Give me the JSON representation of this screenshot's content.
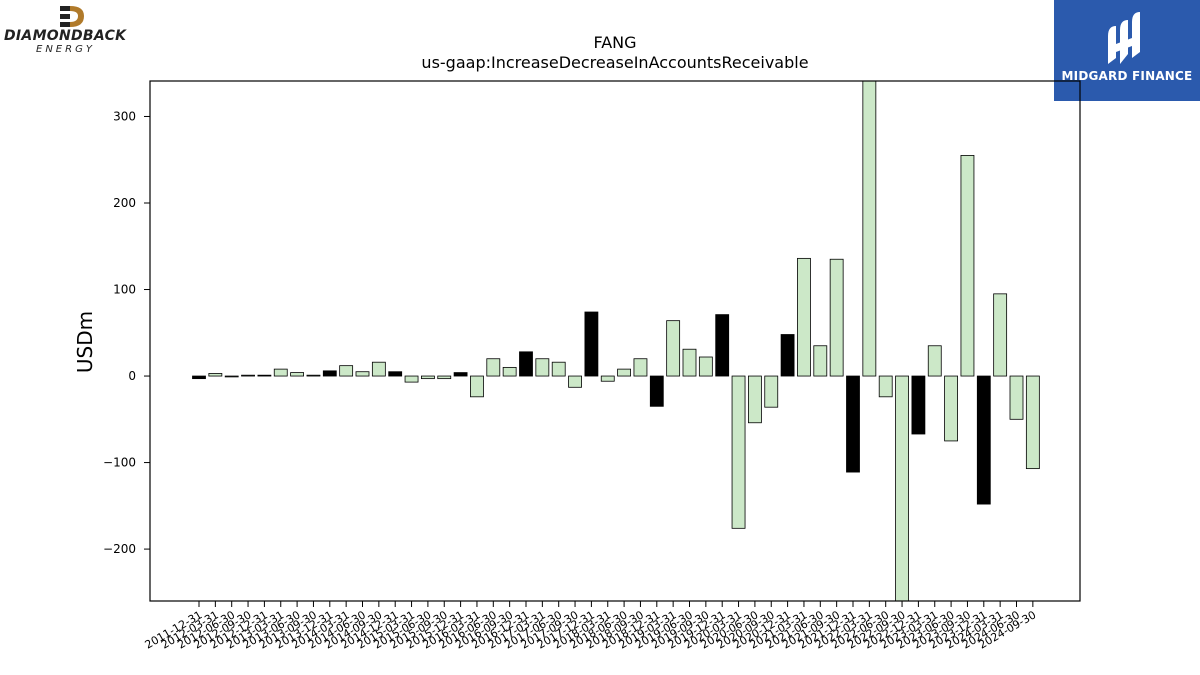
{
  "logos": {
    "left": {
      "name": "DIAMONDBACK",
      "sub": "ENERGY"
    },
    "right": {
      "name": "MIDGARD FINANCE"
    }
  },
  "chart_data": {
    "type": "bar",
    "title": "FANG",
    "subtitle": "us-gaap:IncreaseDecreaseInAccountsReceivable",
    "xlabel": "",
    "ylabel": "USDm",
    "ylim": [
      -260,
      341
    ],
    "yticks": [
      -200,
      -100,
      0,
      100,
      200,
      300
    ],
    "ytick_labels": [
      "−200",
      "−100",
      "0",
      "100",
      "200",
      "300"
    ],
    "grid": false,
    "colors": {
      "q4": "#000000",
      "other": "#cce8c8",
      "edge": "#000000"
    },
    "categories": [
      "2011-12-31",
      "2012-03-31",
      "2012-06-30",
      "2012-09-30",
      "2012-12-31",
      "2013-03-31",
      "2013-06-30",
      "2013-09-30",
      "2013-12-31",
      "2014-03-31",
      "2014-06-30",
      "2014-09-30",
      "2014-12-31",
      "2015-03-31",
      "2015-06-30",
      "2015-09-30",
      "2015-12-31",
      "2016-03-31",
      "2016-06-30",
      "2016-09-30",
      "2016-12-31",
      "2017-03-31",
      "2017-06-30",
      "2017-09-30",
      "2017-12-31",
      "2018-03-31",
      "2018-06-30",
      "2018-09-30",
      "2018-12-31",
      "2019-03-31",
      "2019-06-30",
      "2019-09-30",
      "2019-12-31",
      "2020-03-31",
      "2020-06-30",
      "2020-09-30",
      "2020-12-31",
      "2021-03-31",
      "2021-06-30",
      "2021-09-30",
      "2021-12-31",
      "2022-03-31",
      "2022-06-30",
      "2022-09-30",
      "2022-12-31",
      "2023-03-31",
      "2023-06-30",
      "2023-09-30",
      "2023-12-31",
      "2024-03-31",
      "2024-06-30",
      "2024-09-30"
    ],
    "values": [
      -3,
      3,
      -1,
      1,
      1,
      8,
      4,
      1,
      6,
      12,
      5,
      16,
      5,
      -7,
      -3,
      -3,
      4,
      -24,
      20,
      10,
      28,
      20,
      16,
      -13,
      74,
      -6,
      8,
      20,
      -35,
      64,
      31,
      22,
      71,
      -176,
      -54,
      -36,
      48,
      136,
      35,
      135,
      -111,
      341,
      -24,
      -260,
      -67,
      35,
      -75,
      255,
      -148,
      95,
      -50,
      -107
    ],
    "is_q4": [
      true,
      false,
      false,
      false,
      true,
      false,
      false,
      false,
      true,
      false,
      false,
      false,
      true,
      false,
      false,
      false,
      true,
      false,
      false,
      false,
      true,
      false,
      false,
      false,
      true,
      false,
      false,
      false,
      true,
      false,
      false,
      false,
      true,
      false,
      false,
      false,
      true,
      false,
      false,
      false,
      true,
      false,
      false,
      false,
      true,
      false,
      false,
      false,
      true,
      false,
      false,
      false
    ]
  }
}
